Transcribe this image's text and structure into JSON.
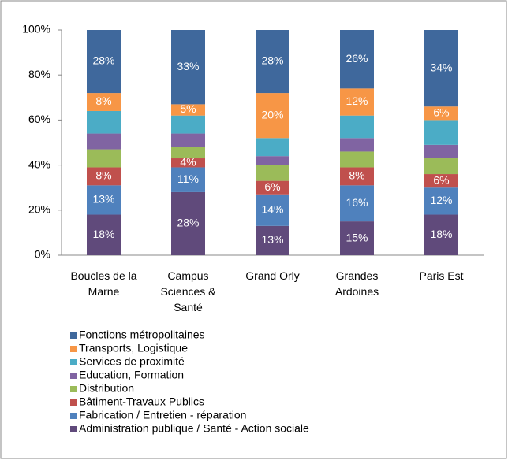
{
  "chart_data": {
    "type": "stacked_bar",
    "categories": [
      "Boucles de la Marne",
      "Campus Sciences & Santé",
      "Grand Orly",
      "Grandes Ardoines",
      "Paris Est"
    ],
    "ylim": [
      0,
      100
    ],
    "yticks": [
      {
        "value": 0,
        "label": "0%"
      },
      {
        "value": 20,
        "label": "20%"
      },
      {
        "value": 40,
        "label": "40%"
      },
      {
        "value": 60,
        "label": "60%"
      },
      {
        "value": 80,
        "label": "80%"
      },
      {
        "value": 100,
        "label": "100%"
      }
    ],
    "series": [
      {
        "name": "Administration publique / Santé - Action sociale",
        "color": "#604a7b",
        "values": [
          18,
          28,
          13,
          15,
          18
        ],
        "value_labels": [
          "18%",
          "28%",
          "13%",
          "15%",
          "18%"
        ]
      },
      {
        "name": "Fabrication / Entretien - réparation",
        "color": "#4f81bd",
        "values": [
          13,
          11,
          14,
          16,
          12
        ],
        "value_labels": [
          "13%",
          "11%",
          "14%",
          "16%",
          "12%"
        ]
      },
      {
        "name": "Bâtiment-Travaux Publics",
        "color": "#c0504d",
        "values": [
          8,
          4,
          6,
          8,
          6
        ],
        "value_labels": [
          "8%",
          "4%",
          "6%",
          "8%",
          "6%"
        ]
      },
      {
        "name": "Distribution",
        "color": "#9bbb59",
        "values": [
          8,
          5,
          7,
          7,
          7
        ]
      },
      {
        "name": "Education, Formation",
        "color": "#8064a2",
        "values": [
          7,
          6,
          4,
          6,
          6
        ]
      },
      {
        "name": "Services de proximité",
        "color": "#4bacc6",
        "values": [
          10,
          8,
          8,
          10,
          11
        ]
      },
      {
        "name": "Transports, Logistique",
        "color": "#f79646",
        "values": [
          8,
          5,
          20,
          12,
          6
        ],
        "value_labels": [
          "8%",
          "5%",
          "20%",
          "12%",
          "6%"
        ]
      },
      {
        "name": "Fonctions métropolitaines",
        "color": "#3f689c",
        "values": [
          28,
          33,
          28,
          26,
          34
        ],
        "value_labels": [
          "28%",
          "33%",
          "28%",
          "26%",
          "34%"
        ]
      }
    ]
  }
}
